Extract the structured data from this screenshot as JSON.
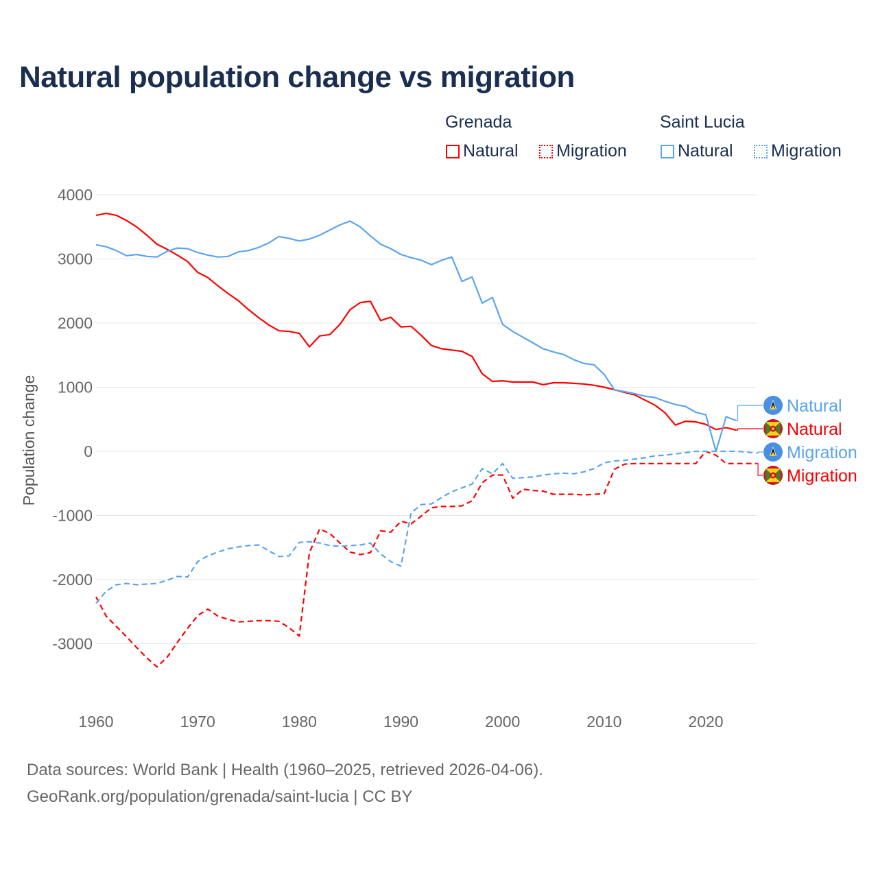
{
  "chart_data": {
    "type": "line",
    "title": "Natural population change vs migration",
    "xlabel": "",
    "ylabel": "Population change",
    "xlim": [
      1960,
      2025
    ],
    "ylim": [
      -3500,
      4000
    ],
    "yticks": [
      4000,
      3000,
      2000,
      1000,
      0,
      -1000,
      -2000,
      -3000
    ],
    "ytick_labels": [
      "4000",
      "3000",
      "2000",
      "1000",
      "0",
      "-1000",
      "-2000",
      "-3000"
    ],
    "xticks": [
      1960,
      1970,
      1980,
      1990,
      2000,
      2010,
      2020
    ],
    "xtick_labels": [
      "1960",
      "1970",
      "1980",
      "1990",
      "2000",
      "2010",
      "2020"
    ],
    "grid": true,
    "legend": {
      "placement": "top-right",
      "groups": [
        {
          "name": "Grenada",
          "items": [
            "Natural",
            "Migration"
          ]
        },
        {
          "name": "Saint Lucia",
          "items": [
            "Natural",
            "Migration"
          ]
        }
      ]
    },
    "series": [
      {
        "name": "Grenada Natural",
        "country": "Grenada",
        "label": "Natural",
        "color": "#ff0000",
        "dash": false,
        "start_year": 1960,
        "values": [
          3680,
          3710,
          3680,
          3600,
          3500,
          3370,
          3230,
          3150,
          3060,
          2960,
          2790,
          2710,
          2580,
          2460,
          2350,
          2210,
          2085,
          1970,
          1880,
          1870,
          1840,
          1630,
          1800,
          1820,
          1980,
          2210,
          2320,
          2340,
          2040,
          2090,
          1940,
          1950,
          1810,
          1650,
          1600,
          1580,
          1560,
          1480,
          1210,
          1090,
          1100,
          1080,
          1080,
          1080,
          1040,
          1070,
          1070,
          1060,
          1050,
          1030,
          1000,
          960,
          920,
          880,
          800,
          720,
          600,
          410,
          470,
          460,
          420,
          340,
          370,
          330
        ]
      },
      {
        "name": "Grenada Migration",
        "country": "Grenada",
        "label": "Migration",
        "color": "#ff0000",
        "dash": true,
        "start_year": 1960,
        "values": [
          -2270,
          -2570,
          -2730,
          -2890,
          -3060,
          -3220,
          -3360,
          -3210,
          -2980,
          -2760,
          -2560,
          -2460,
          -2570,
          -2620,
          -2660,
          -2650,
          -2640,
          -2640,
          -2650,
          -2750,
          -2880,
          -1580,
          -1210,
          -1280,
          -1430,
          -1570,
          -1610,
          -1580,
          -1240,
          -1260,
          -1090,
          -1130,
          -1010,
          -880,
          -860,
          -860,
          -850,
          -770,
          -490,
          -370,
          -370,
          -730,
          -590,
          -610,
          -620,
          -670,
          -670,
          -670,
          -680,
          -670,
          -660,
          -280,
          -200,
          -190,
          -190,
          -190,
          -190,
          -190,
          -190,
          -190,
          0,
          -60,
          -190,
          -190,
          -190,
          -190
        ]
      },
      {
        "name": "Saint Lucia Natural",
        "country": "Saint Lucia",
        "label": "Natural",
        "color": "#5ba4ee",
        "dash": false,
        "start_year": 1960,
        "values": [
          3220,
          3190,
          3130,
          3050,
          3070,
          3040,
          3030,
          3120,
          3170,
          3160,
          3100,
          3060,
          3030,
          3040,
          3110,
          3130,
          3180,
          3250,
          3350,
          3320,
          3280,
          3310,
          3370,
          3450,
          3530,
          3590,
          3500,
          3360,
          3230,
          3160,
          3070,
          3020,
          2980,
          2910,
          2980,
          3030,
          2650,
          2720,
          2310,
          2400,
          1980,
          1870,
          1780,
          1690,
          1600,
          1550,
          1510,
          1430,
          1370,
          1350,
          1200,
          960,
          930,
          900,
          860,
          840,
          780,
          730,
          700,
          610,
          570,
          0,
          540,
          480
        ]
      },
      {
        "name": "Saint Lucia Migration",
        "country": "Saint Lucia",
        "label": "Migration",
        "color": "#5ba4ee",
        "dash": true,
        "start_year": 1960,
        "values": [
          -2370,
          -2180,
          -2080,
          -2060,
          -2080,
          -2070,
          -2060,
          -2010,
          -1950,
          -1960,
          -1720,
          -1630,
          -1570,
          -1520,
          -1490,
          -1470,
          -1460,
          -1550,
          -1640,
          -1630,
          -1420,
          -1410,
          -1430,
          -1470,
          -1480,
          -1470,
          -1460,
          -1430,
          -1600,
          -1720,
          -1790,
          -960,
          -830,
          -820,
          -720,
          -630,
          -570,
          -510,
          -270,
          -350,
          -190,
          -420,
          -410,
          -400,
          -370,
          -350,
          -340,
          -350,
          -320,
          -270,
          -180,
          -150,
          -140,
          -120,
          -100,
          -70,
          -60,
          -40,
          -20,
          0,
          0,
          0,
          0,
          0,
          -10,
          -30
        ]
      }
    ],
    "end_labels": [
      {
        "text": "Natural",
        "series": 2,
        "flag": "saint-lucia"
      },
      {
        "text": "Natural",
        "series": 0,
        "flag": "grenada"
      },
      {
        "text": "Migration",
        "series": 3,
        "flag": "saint-lucia"
      },
      {
        "text": "Migration",
        "series": 1,
        "flag": "grenada"
      }
    ]
  },
  "footer": {
    "line1": "Data sources: World Bank | Health (1960–2025, retrieved 2026-04-06).",
    "line2": "GeoRank.org/population/grenada/saint-lucia | CC BY"
  }
}
